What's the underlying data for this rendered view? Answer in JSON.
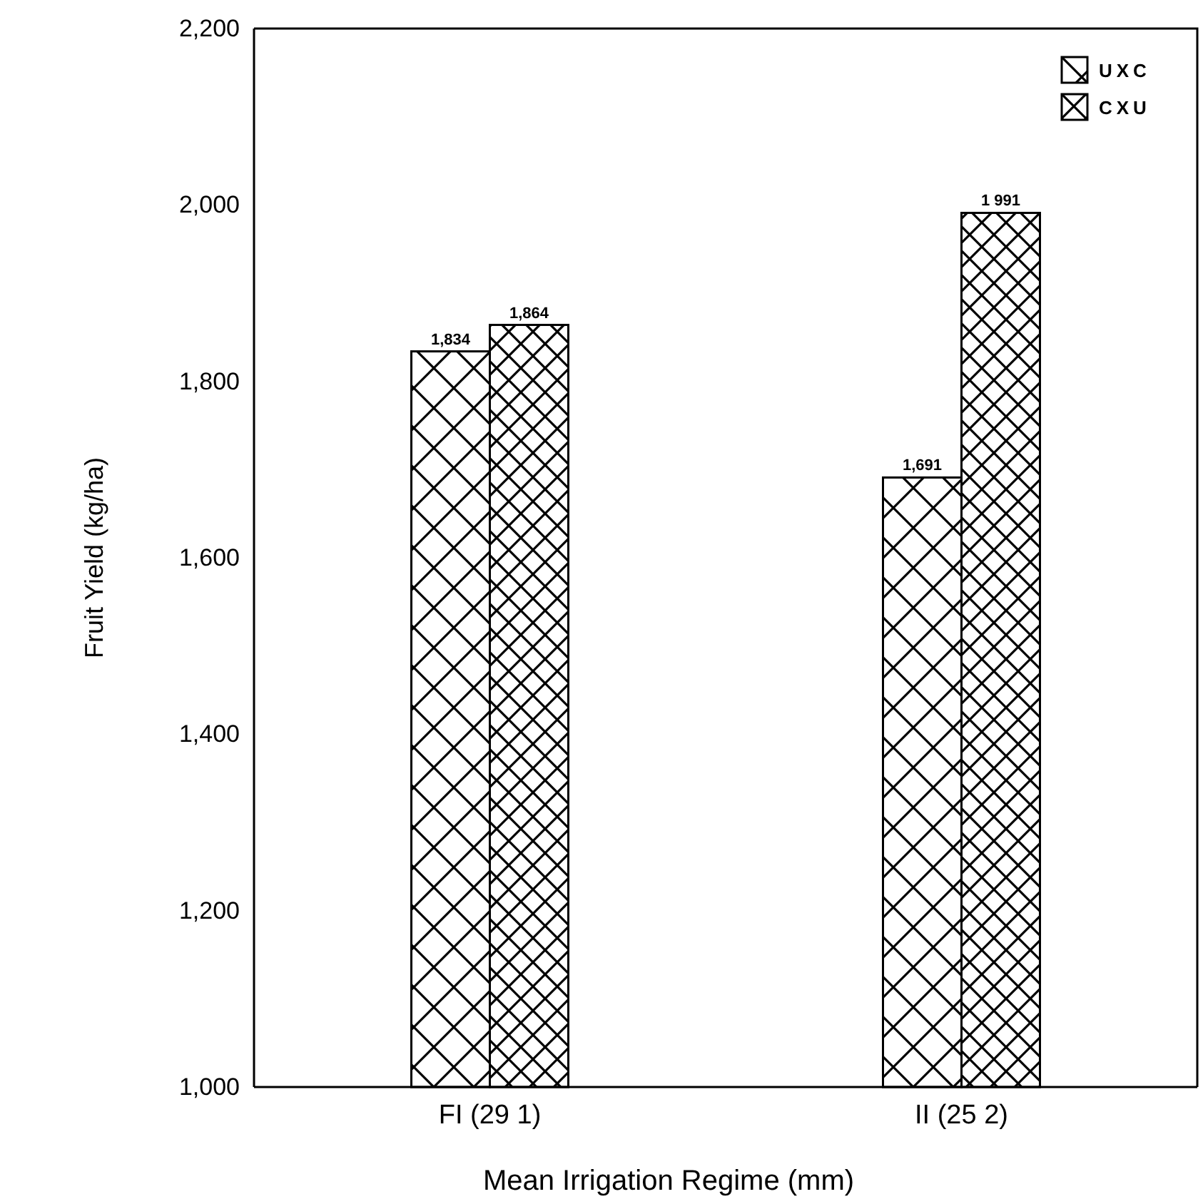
{
  "chart_data": {
    "type": "bar",
    "xlabel": "Mean Irrigation Regime (mm)",
    "ylabel": "Fruit Yield (kg/ha)",
    "categories": [
      "FI (29 1)",
      "II (25 2)"
    ],
    "series": [
      {
        "name": "UXC",
        "color": "#000000",
        "values": [
          1834,
          1691
        ],
        "value_labels": [
          "1,834",
          "1,691"
        ]
      },
      {
        "name": "CXU",
        "color": "#000000",
        "values": [
          1864,
          1991
        ],
        "value_labels": [
          "1,864",
          "1 991"
        ]
      }
    ],
    "ylim": [
      1000,
      2200
    ],
    "yticks": [
      {
        "value": 1000,
        "label": "1,000"
      },
      {
        "value": 1200,
        "label": "1,200"
      },
      {
        "value": 1400,
        "label": "1,400"
      },
      {
        "value": 1600,
        "label": "1,600"
      },
      {
        "value": 1800,
        "label": "1,800"
      },
      {
        "value": 2000,
        "label": "2,000"
      },
      {
        "value": 2200,
        "label": "2,200"
      }
    ],
    "legend": "top right",
    "grid": false
  }
}
